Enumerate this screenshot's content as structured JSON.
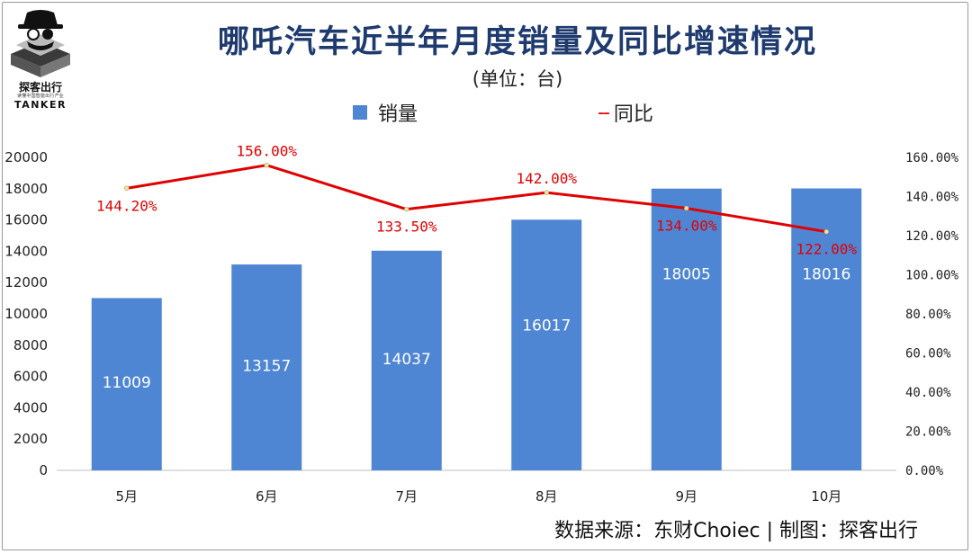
{
  "logo": {
    "name_cn": "探客出行",
    "name_en": "TANKER",
    "tagline": "读懂中国智能出行产业"
  },
  "header": {
    "title": "哪吒汽车近半年月度销量及同比增速情况",
    "unit": "(单位：台)"
  },
  "legend": {
    "bar_label": "销量",
    "line_symbol": "--",
    "line_label": "同比"
  },
  "footer": {
    "source": "数据来源：东财Choiec  |  制图：探客出行"
  },
  "chart_data": {
    "type": "bar",
    "title": "哪吒汽车近半年月度销量及同比增速情况",
    "subtitle": "(单位：台)",
    "categories": [
      "5月",
      "6月",
      "7月",
      "8月",
      "9月",
      "10月"
    ],
    "series": [
      {
        "name": "销量",
        "type": "bar",
        "axis": "left",
        "values": [
          11009,
          13157,
          14037,
          16017,
          18005,
          18016
        ]
      },
      {
        "name": "同比",
        "type": "line",
        "axis": "right",
        "values": [
          144.2,
          156.0,
          133.5,
          142.0,
          134.0,
          122.0
        ],
        "labels": [
          "144.20%",
          "156.00%",
          "133.50%",
          "142.00%",
          "134.00%",
          "122.00%"
        ]
      }
    ],
    "y_left": {
      "min": 0,
      "max": 20000,
      "ticks": [
        "0",
        "2000",
        "4000",
        "6000",
        "8000",
        "10000",
        "12000",
        "14000",
        "16000",
        "18000",
        "20000"
      ]
    },
    "y_right": {
      "min": 0,
      "max": 160,
      "ticks": [
        "0.00%",
        "20.00%",
        "40.00%",
        "60.00%",
        "80.00%",
        "100.00%",
        "120.00%",
        "140.00%",
        "160.00%"
      ]
    },
    "grid": false,
    "legend_position": "top",
    "colors": {
      "bar": "#4f86d4",
      "line": "#e00000",
      "marker": "#f0e68c"
    }
  }
}
